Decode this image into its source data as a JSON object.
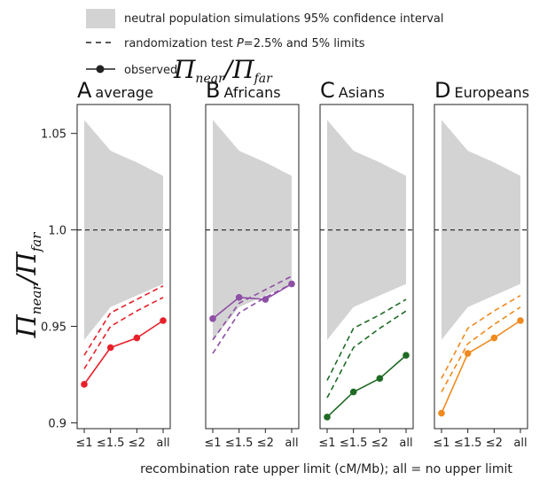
{
  "legend": {
    "ci_label": "neutral population simulations 95% confidence interval",
    "rand_prefix": "randomization test ",
    "rand_p": "P",
    "rand_suffix": "=2.5% and 5% limits",
    "obs_prefix": "observed ",
    "obs_pi1": "Π",
    "obs_sub1": "near",
    "obs_slash": "/",
    "obs_pi2": "Π",
    "obs_sub2": "far"
  },
  "y_axis": {
    "pi1": "Π",
    "sub1": "near",
    "slash": "/",
    "pi2": "Π",
    "sub2": "far",
    "ticks": [
      "0.9",
      "0.95",
      "1.0",
      "1.05"
    ]
  },
  "x_axis_label": "recombination rate upper limit (cM/Mb); all = no upper limit",
  "colors": {
    "ci_fill": "#d3d3d3",
    "reference": "#333333",
    "average": "#e8202a",
    "africans": "#8e4fa6",
    "asians": "#1f6b25",
    "europeans": "#f08a1e"
  },
  "chart_data": {
    "type": "line",
    "categories": [
      "≤1",
      "≤1.5",
      "≤2",
      "all"
    ],
    "ylim": [
      0.897,
      1.065
    ],
    "ylabel": "Πnear/Πfar",
    "xlabel": "recombination rate upper limit (cM/Mb); all = no upper limit",
    "reference_line": 1.0,
    "ci_band": {
      "upper": [
        1.057,
        1.041,
        1.035,
        1.028
      ],
      "lower": [
        0.943,
        0.96,
        0.966,
        0.972
      ]
    },
    "panels": [
      {
        "letter": "A",
        "name": "average",
        "color": "#e8202a",
        "observed": [
          0.92,
          0.939,
          0.944,
          0.953
        ],
        "limit_2_5": [
          0.928,
          0.95,
          0.958,
          0.965
        ],
        "limit_5": [
          0.935,
          0.957,
          0.964,
          0.971
        ]
      },
      {
        "letter": "B",
        "name": "Africans",
        "color": "#8e4fa6",
        "observed": [
          0.954,
          0.965,
          0.964,
          0.972
        ],
        "limit_2_5": [
          0.936,
          0.957,
          0.965,
          0.972
        ],
        "limit_5": [
          0.943,
          0.962,
          0.969,
          0.976
        ]
      },
      {
        "letter": "C",
        "name": "Asians",
        "color": "#1f6b25",
        "observed": [
          0.903,
          0.916,
          0.923,
          0.935
        ],
        "limit_2_5": [
          0.913,
          0.939,
          0.949,
          0.958
        ],
        "limit_5": [
          0.922,
          0.949,
          0.956,
          0.964
        ]
      },
      {
        "letter": "D",
        "name": "Europeans",
        "color": "#f08a1e",
        "observed": [
          0.905,
          0.936,
          0.944,
          0.953
        ],
        "limit_2_5": [
          0.916,
          0.941,
          0.951,
          0.96
        ],
        "limit_5": [
          0.923,
          0.949,
          0.958,
          0.966
        ]
      }
    ]
  }
}
